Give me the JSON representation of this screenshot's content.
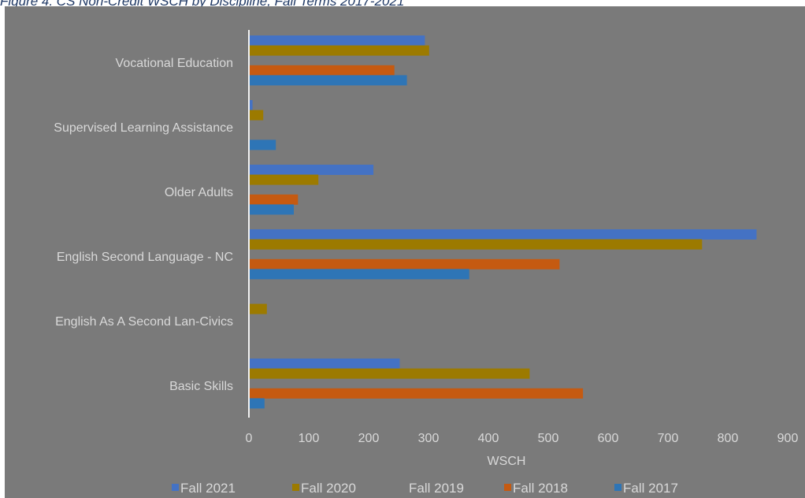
{
  "figure": {
    "caption": "Figure 4. CS Non-Credit WSCH by Discipline, Fall Terms 2017-2021"
  },
  "chart_data": {
    "type": "bar",
    "orientation": "horizontal",
    "title": "",
    "xlabel": "WSCH",
    "ylabel": "",
    "xlim": [
      0,
      900
    ],
    "xticks": [
      0,
      100,
      200,
      300,
      400,
      500,
      600,
      700,
      800,
      900
    ],
    "categories": [
      "Vocational Education",
      "Supervised Learning Assistance",
      "Older Adults",
      "English Second Language - NC",
      "English As A Second Lan-Civics",
      "Basic Skills"
    ],
    "series": [
      {
        "name": "Fall 2021",
        "color": "#4472c4",
        "values": [
          294,
          6,
          208,
          848,
          0,
          252
        ]
      },
      {
        "name": "Fall 2020",
        "color": "#9c7a00",
        "values": [
          301,
          24,
          116,
          757,
          30,
          469
        ]
      },
      {
        "name": "Fall 2019",
        "color": "#7a7a7a",
        "values": [
          0,
          0,
          0,
          0,
          0,
          0
        ]
      },
      {
        "name": "Fall 2018",
        "color": "#c55a11",
        "values": [
          243,
          0,
          82,
          519,
          0,
          558
        ]
      },
      {
        "name": "Fall 2017",
        "color": "#2e75b6",
        "values": [
          264,
          45,
          75,
          368,
          0,
          26
        ]
      }
    ],
    "grid": false,
    "legend_position": "bottom"
  }
}
